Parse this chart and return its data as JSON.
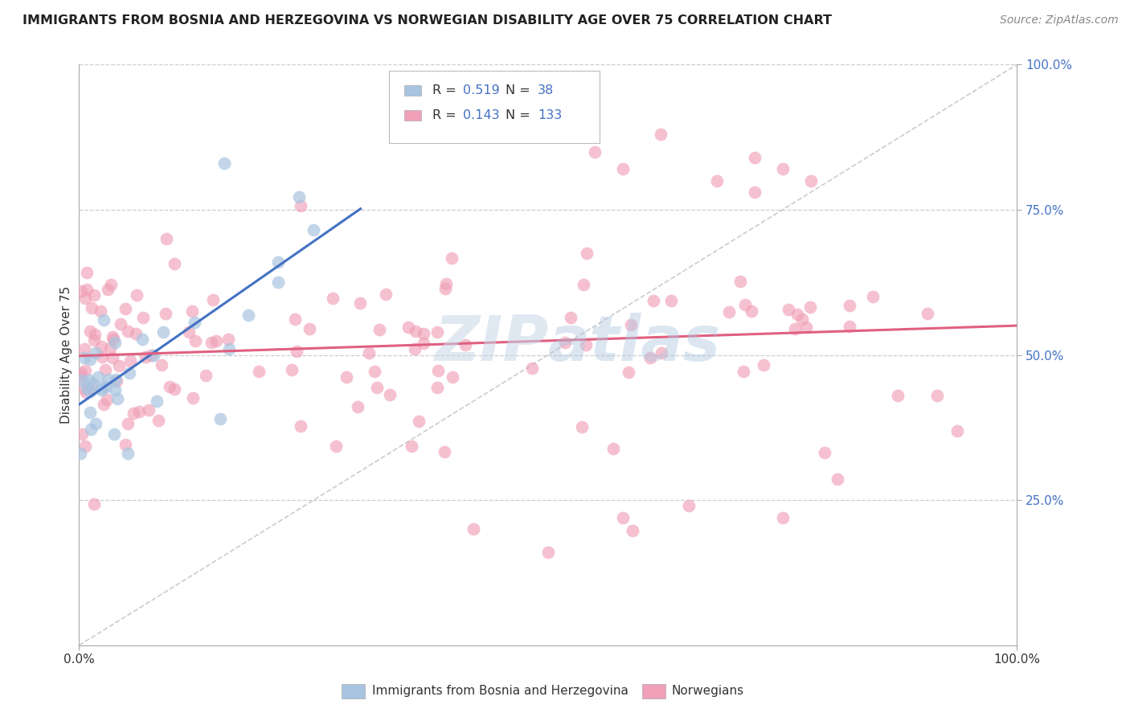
{
  "title": "IMMIGRANTS FROM BOSNIA AND HERZEGOVINA VS NORWEGIAN DISABILITY AGE OVER 75 CORRELATION CHART",
  "source": "Source: ZipAtlas.com",
  "ylabel": "Disability Age Over 75",
  "color_blue": "#a8c4e0",
  "color_pink": "#f0a0b8",
  "line_blue": "#4472c4",
  "line_pink": "#e06080",
  "ytick_color": "#4472c4",
  "watermark_color": "#c8d8e8",
  "r_bosnia": 0.519,
  "n_bosnia": 38,
  "r_norw": 0.143,
  "n_norw": 133,
  "grid_color": "#cccccc",
  "spine_color": "#aaaaaa",
  "title_color": "#222222",
  "source_color": "#888888"
}
